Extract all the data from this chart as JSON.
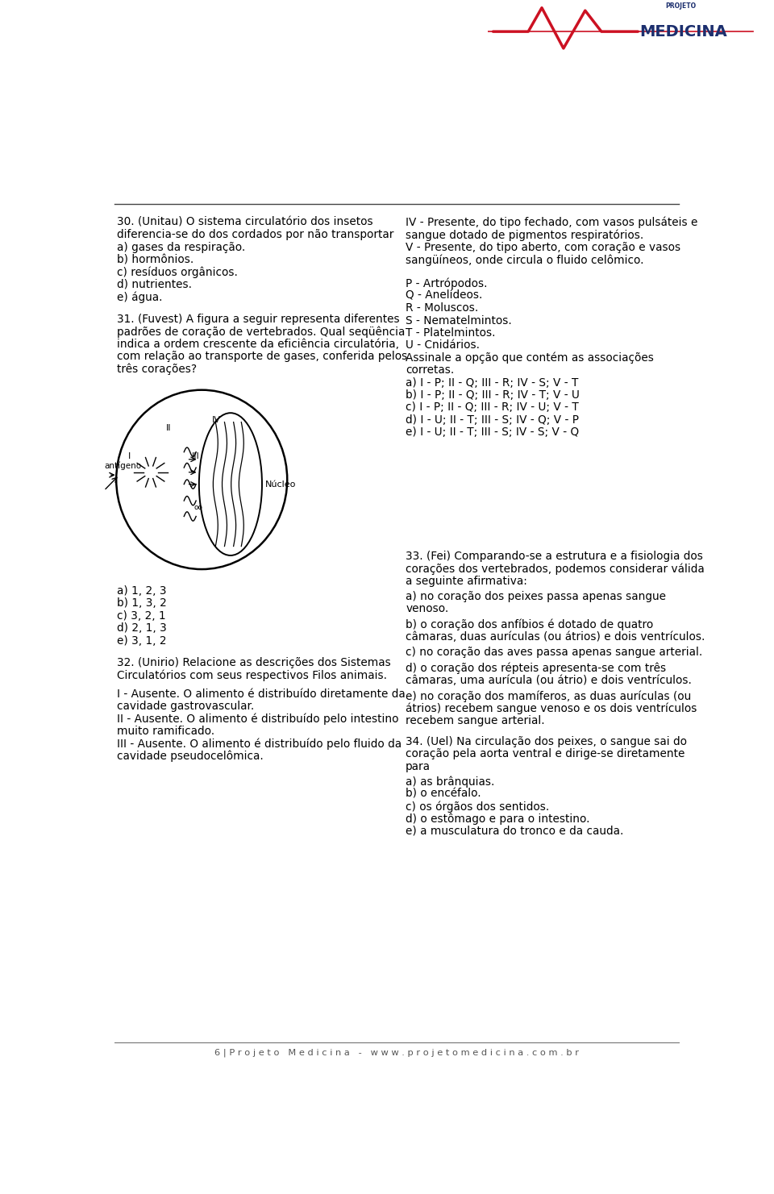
{
  "bg_color": "#ffffff",
  "text_color": "#000000",
  "page_width": 9.6,
  "page_height": 14.81,
  "footer_text": "6 | P r o j e t o   M e d i c i n a   -   w w w . p r o j e t o m e d i c i n a . c o m . b r",
  "q30_left": [
    "30. (Unitau) O sistema circulatório dos insetos",
    "diferencia-se do dos cordados por não transportar",
    "a) gases da respiração.",
    "b) hormônios.",
    "c) resíduos orgânicos.",
    "d) nutrientes.",
    "e) água."
  ],
  "q30_right": [
    "IV - Presente, do tipo fechado, com vasos pulsáteis e",
    "sangue dotado de pigmentos respiratórios.",
    "V - Presente, do tipo aberto, com coração e vasos",
    "sangüíneos, onde circula o fluido celômico.",
    "",
    "P - Artrópodos.",
    "Q - Anelídeos.",
    "R - Moluscos.",
    "S - Nematelmintos.",
    "T - Platelmintos.",
    "U - Cnidários.",
    "Assinale a opção que contém as associações",
    "corretas.",
    "a) I - P; II - Q; III - R; IV - S; V - T",
    "b) I - P; II - Q; III - R; IV - T; V - U",
    "c) I - P; II - Q; III - R; IV - U; V - T",
    "d) I - U; II - T; III - S; IV - Q; V - P",
    "e) I - U; II - T; III - S; IV - S; V - Q"
  ],
  "q31_left_intro": [
    "31. (Fuvest) A figura a seguir representa diferentes",
    "padrões de coração de vertebrados. Qual seqüência",
    "indica a ordem crescente da eficiência circulatória,",
    "com relação ao transporte de gases, conferida pelos",
    "três corações?"
  ],
  "q31_left_answers": [
    "a) 1, 2, 3",
    "b) 1, 3, 2",
    "c) 3, 2, 1",
    "d) 2, 1, 3",
    "e) 3, 1, 2"
  ],
  "q32_left": [
    "32. (Unirio) Relacione as descrições dos Sistemas",
    "Circulatórios com seus respectivos Filos animais.",
    "",
    "I - Ausente. O alimento é distribuído diretamente da",
    "cavidade gastrovascular.",
    "II - Ausente. O alimento é distribuído pelo intestino",
    "muito ramificado.",
    "III - Ausente. O alimento é distribuído pelo fluido da",
    "cavidade pseudocelômica."
  ],
  "q33_right": [
    "33. (Fei) Comparando-se a estrutura e a fisiologia dos",
    "corações dos vertebrados, podemos considerar válida",
    "a seguinte afirmativa:",
    "a) no coração dos peixes passa apenas sangue",
    "venoso.",
    "b) o coração dos anfíbios é dotado de quatro",
    "câmaras, duas aurículas (ou átrios) e dois ventrículos.",
    "c) no coração das aves passa apenas sangue arterial.",
    "d) o coração dos répteis apresenta-se com três",
    "câmaras, uma aurícula (ou átrio) e dois ventrículos.",
    "e) no coração dos mamíferos, as duas aurículas (ou",
    "átrios) recebem sangue venoso e os dois ventrículos",
    "recebem sangue arterial."
  ],
  "q34_right": [
    "34. (Uel) Na circulação dos peixes, o sangue sai do",
    "coração pela aorta ventral e dirige-se diretamente",
    "para",
    "a) as brânquias.",
    "b) o encéfalo.",
    "c) os órgãos dos sentidos.",
    "d) o estômago e para o intestino.",
    "e) a musculatura do tronco e da cauda."
  ]
}
